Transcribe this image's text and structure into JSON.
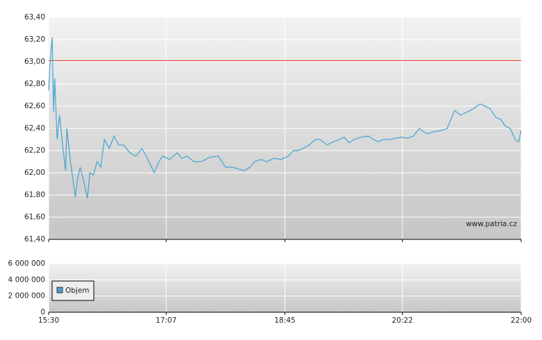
{
  "chart_data": [
    {
      "type": "line",
      "x": [
        "15:30",
        "15:31",
        "15:33",
        "15:34",
        "15:35",
        "15:37",
        "15:39",
        "15:42",
        "15:44",
        "15:45",
        "15:48",
        "15:52",
        "15:54",
        "15:56",
        "15:59",
        "16:02",
        "16:04",
        "16:07",
        "16:10",
        "16:13",
        "16:16",
        "16:20",
        "16:24",
        "16:28",
        "16:32",
        "16:37",
        "16:42",
        "16:47",
        "16:52",
        "16:57",
        "17:01",
        "17:04",
        "17:10",
        "17:16",
        "17:20",
        "17:24",
        "17:30",
        "17:36",
        "17:43",
        "17:50",
        "17:56",
        "18:02",
        "18:08",
        "18:12",
        "18:16",
        "18:20",
        "18:25",
        "18:30",
        "18:36",
        "18:42",
        "18:48",
        "18:52",
        "18:56",
        "19:00",
        "19:05",
        "19:10",
        "19:14",
        "19:20",
        "19:25",
        "19:30",
        "19:34",
        "19:38",
        "19:42",
        "19:48",
        "19:54",
        "19:58",
        "20:02",
        "20:06",
        "20:11",
        "20:16",
        "20:22",
        "20:26",
        "20:31",
        "20:36",
        "20:42",
        "20:48",
        "20:54",
        "20:59",
        "21:05",
        "21:10",
        "21:16",
        "21:21",
        "21:26",
        "21:30",
        "21:34",
        "21:39",
        "21:43",
        "21:47",
        "21:51",
        "21:55",
        "21:58",
        "22:00"
      ],
      "series": [
        {
          "color": "#4aa8d0",
          "values": [
            62.74,
            62.95,
            63.22,
            62.55,
            62.85,
            62.3,
            62.52,
            62.2,
            62.02,
            62.4,
            62.1,
            61.78,
            61.95,
            62.05,
            61.92,
            61.77,
            62.0,
            61.98,
            62.1,
            62.05,
            62.3,
            62.22,
            62.33,
            62.25,
            62.25,
            62.18,
            62.15,
            62.22,
            62.12,
            62.0,
            62.1,
            62.15,
            62.12,
            62.18,
            62.13,
            62.15,
            62.1,
            62.1,
            62.14,
            62.15,
            62.05,
            62.05,
            62.03,
            62.02,
            62.05,
            62.1,
            62.12,
            62.1,
            62.13,
            62.12,
            62.15,
            62.2,
            62.2,
            62.22,
            62.25,
            62.3,
            62.3,
            62.25,
            62.28,
            62.3,
            62.32,
            62.27,
            62.3,
            62.32,
            62.33,
            62.3,
            62.28,
            62.3,
            62.3,
            62.31,
            62.32,
            62.31,
            62.33,
            62.4,
            62.35,
            62.37,
            62.38,
            62.4,
            62.56,
            62.52,
            62.55,
            62.58,
            62.62,
            62.6,
            62.58,
            62.5,
            62.48,
            62.42,
            62.4,
            62.3,
            62.28,
            62.38
          ]
        }
      ],
      "hline": {
        "value": 63.01,
        "color": "#e05040"
      },
      "annotation": "www.patria.cz",
      "xlim": [
        "15:30",
        "22:00"
      ],
      "xticks": [
        "15:30",
        "17:07",
        "18:45",
        "20:22",
        "22:00"
      ],
      "ylim": [
        61.4,
        63.4
      ],
      "yticks": [
        {
          "value": 61.4,
          "label": "61,40"
        },
        {
          "value": 61.6,
          "label": "61,60"
        },
        {
          "value": 61.8,
          "label": "61,80"
        },
        {
          "value": 62.0,
          "label": "62,00"
        },
        {
          "value": 62.2,
          "label": "62,20"
        },
        {
          "value": 62.4,
          "label": "62,40"
        },
        {
          "value": 62.6,
          "label": "62,60"
        },
        {
          "value": 62.8,
          "label": "62,80"
        },
        {
          "value": 63.0,
          "label": "63,00"
        },
        {
          "value": 63.2,
          "label": "63,20"
        },
        {
          "value": 63.4,
          "label": "63,40"
        }
      ],
      "grid": true
    },
    {
      "type": "bar",
      "series": [
        {
          "name": "Objem",
          "color": "#4f9fd0"
        }
      ],
      "xlim": [
        "15:30",
        "22:00"
      ],
      "xticks": [
        "15:30",
        "17:07",
        "18:45",
        "20:22",
        "22:00"
      ],
      "ylim": [
        0,
        6000000
      ],
      "yticks": [
        0,
        {
          "value": 2000000,
          "label": "2 000 000"
        },
        {
          "value": 4000000,
          "label": "4 000 000"
        },
        {
          "value": 6000000,
          "label": "6 000 000"
        }
      ],
      "grid": true,
      "legend": "bottom-left"
    }
  ]
}
